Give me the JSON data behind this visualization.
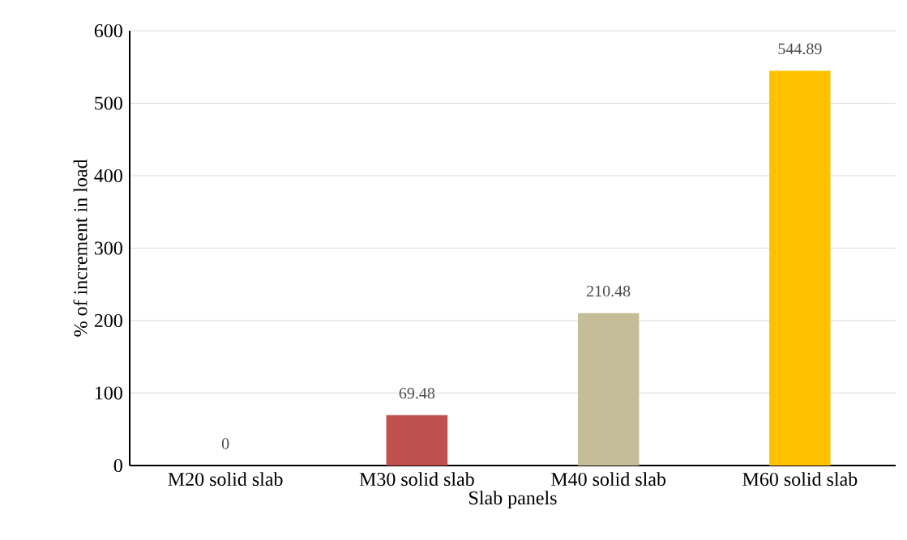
{
  "chart_data": {
    "type": "bar",
    "xlabel": "Slab panels",
    "ylabel": "% of increment in load",
    "categories": [
      "M20  solid slab",
      "M30  solid slab",
      "M40  solid slab",
      "M60  solid slab"
    ],
    "values": [
      0,
      69.48,
      210.48,
      544.89
    ],
    "colors": [
      "#4f81bd",
      "#c0504d",
      "#c4bd97",
      "#ffc000"
    ],
    "ylim": [
      0,
      600
    ],
    "yticks": [
      0,
      100,
      200,
      300,
      400,
      500,
      600
    ],
    "grid": "y",
    "data_labels": true
  }
}
